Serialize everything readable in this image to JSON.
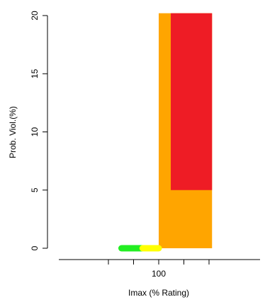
{
  "chart_data": {
    "type": "area",
    "xlabel": "Imax (% Rating)",
    "ylabel": "Prob. Viol.(%)",
    "x_tick_labels": [
      "100"
    ],
    "y_tick_labels": [
      "0",
      "5",
      "10",
      "15",
      "20"
    ],
    "x_ticks": [
      50,
      75,
      100,
      125,
      150
    ],
    "y_ticks": [
      0,
      5,
      10,
      15,
      20
    ],
    "xlim": [
      30,
      153
    ],
    "ylim": [
      -0.7,
      20.2
    ],
    "regions": [
      {
        "color": "#FFA500",
        "x": [
          100,
          153
        ],
        "y": [
          0,
          20.2
        ]
      },
      {
        "color": "#EE1C25",
        "x": [
          112,
          153
        ],
        "y": [
          5,
          20.2
        ]
      }
    ],
    "series": [
      {
        "color": "#22EE22",
        "x": [
          63,
          84
        ],
        "values": [
          0,
          0
        ]
      },
      {
        "color": "#FFFF00",
        "x": [
          84,
          100
        ],
        "values": [
          0,
          0
        ]
      }
    ],
    "grid": false
  }
}
